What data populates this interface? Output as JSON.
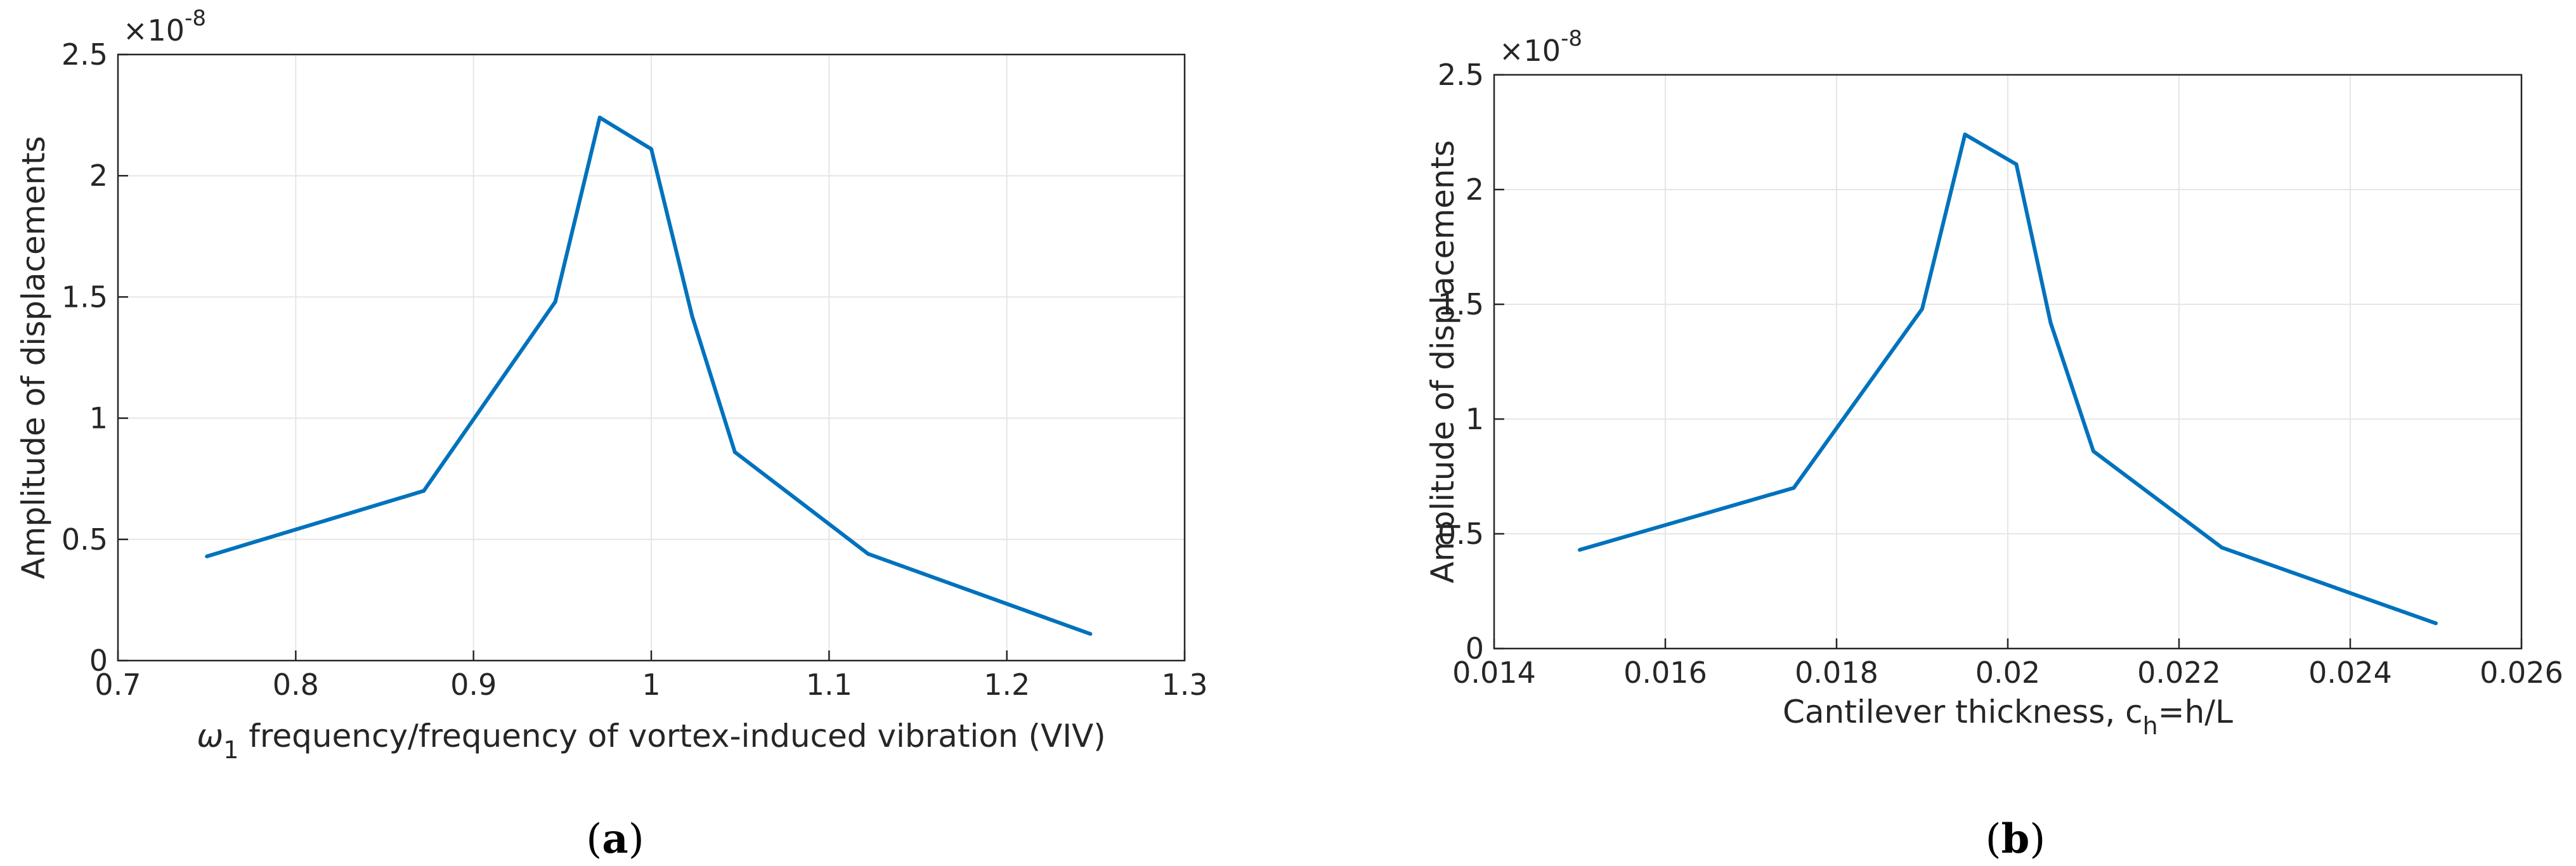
{
  "colors": {
    "series": "#0072bd",
    "axis": "#262626",
    "grid": "#e6e6e6"
  },
  "chart_data": [
    {
      "type": "line",
      "panel_label": "a",
      "xlabel_symbol": "ω",
      "xlabel_subscript": "1",
      "xlabel_rest": " frequency/frequency of vortex-induced vibration (VIV)",
      "ylabel": "Amplitude of displacements",
      "y_exponent_label": "×10",
      "y_exponent_power": "-8",
      "xlim": [
        0.7,
        1.3
      ],
      "ylim": [
        0,
        2.5
      ],
      "xticks": [
        0.7,
        0.8,
        0.9,
        1,
        1.1,
        1.2,
        1.3
      ],
      "xtick_labels": [
        "0.7",
        "0.8",
        "0.9",
        "1",
        "1.1",
        "1.2",
        "1.3"
      ],
      "yticks": [
        0,
        0.5,
        1,
        1.5,
        2,
        2.5
      ],
      "ytick_labels": [
        "0",
        "0.5",
        "1",
        "1.5",
        "2",
        "2.5"
      ],
      "grid": true,
      "series": [
        {
          "x": [
            0.75,
            0.872,
            0.946,
            0.971,
            1.0,
            1.023,
            1.047,
            1.122,
            1.247
          ],
          "y": [
            0.43,
            0.7,
            1.48,
            2.24,
            2.11,
            1.42,
            0.86,
            0.44,
            0.11
          ]
        }
      ]
    },
    {
      "type": "line",
      "panel_label": "b",
      "xlabel_main": "Cantilever thickness, c",
      "xlabel_subscript": "h",
      "xlabel_rest": "=h/L",
      "ylabel": "Amplitude of displacements",
      "y_exponent_label": "×10",
      "y_exponent_power": "-8",
      "xlim": [
        0.014,
        0.026
      ],
      "ylim": [
        0,
        2.5
      ],
      "xticks": [
        0.014,
        0.016,
        0.018,
        0.02,
        0.022,
        0.024,
        0.026
      ],
      "xtick_labels": [
        "0.014",
        "0.016",
        "0.018",
        "0.02",
        "0.022",
        "0.024",
        "0.026"
      ],
      "yticks": [
        0,
        0.5,
        1,
        1.5,
        2,
        2.5
      ],
      "ytick_labels": [
        "0",
        "0.5",
        "1",
        "1.5",
        "2",
        "2.5"
      ],
      "grid": true,
      "series": [
        {
          "x": [
            0.015,
            0.0175,
            0.019,
            0.0195,
            0.0201,
            0.0205,
            0.021,
            0.0225,
            0.025
          ],
          "y": [
            0.43,
            0.7,
            1.48,
            2.24,
            2.11,
            1.42,
            0.86,
            0.44,
            0.11
          ]
        }
      ]
    }
  ]
}
